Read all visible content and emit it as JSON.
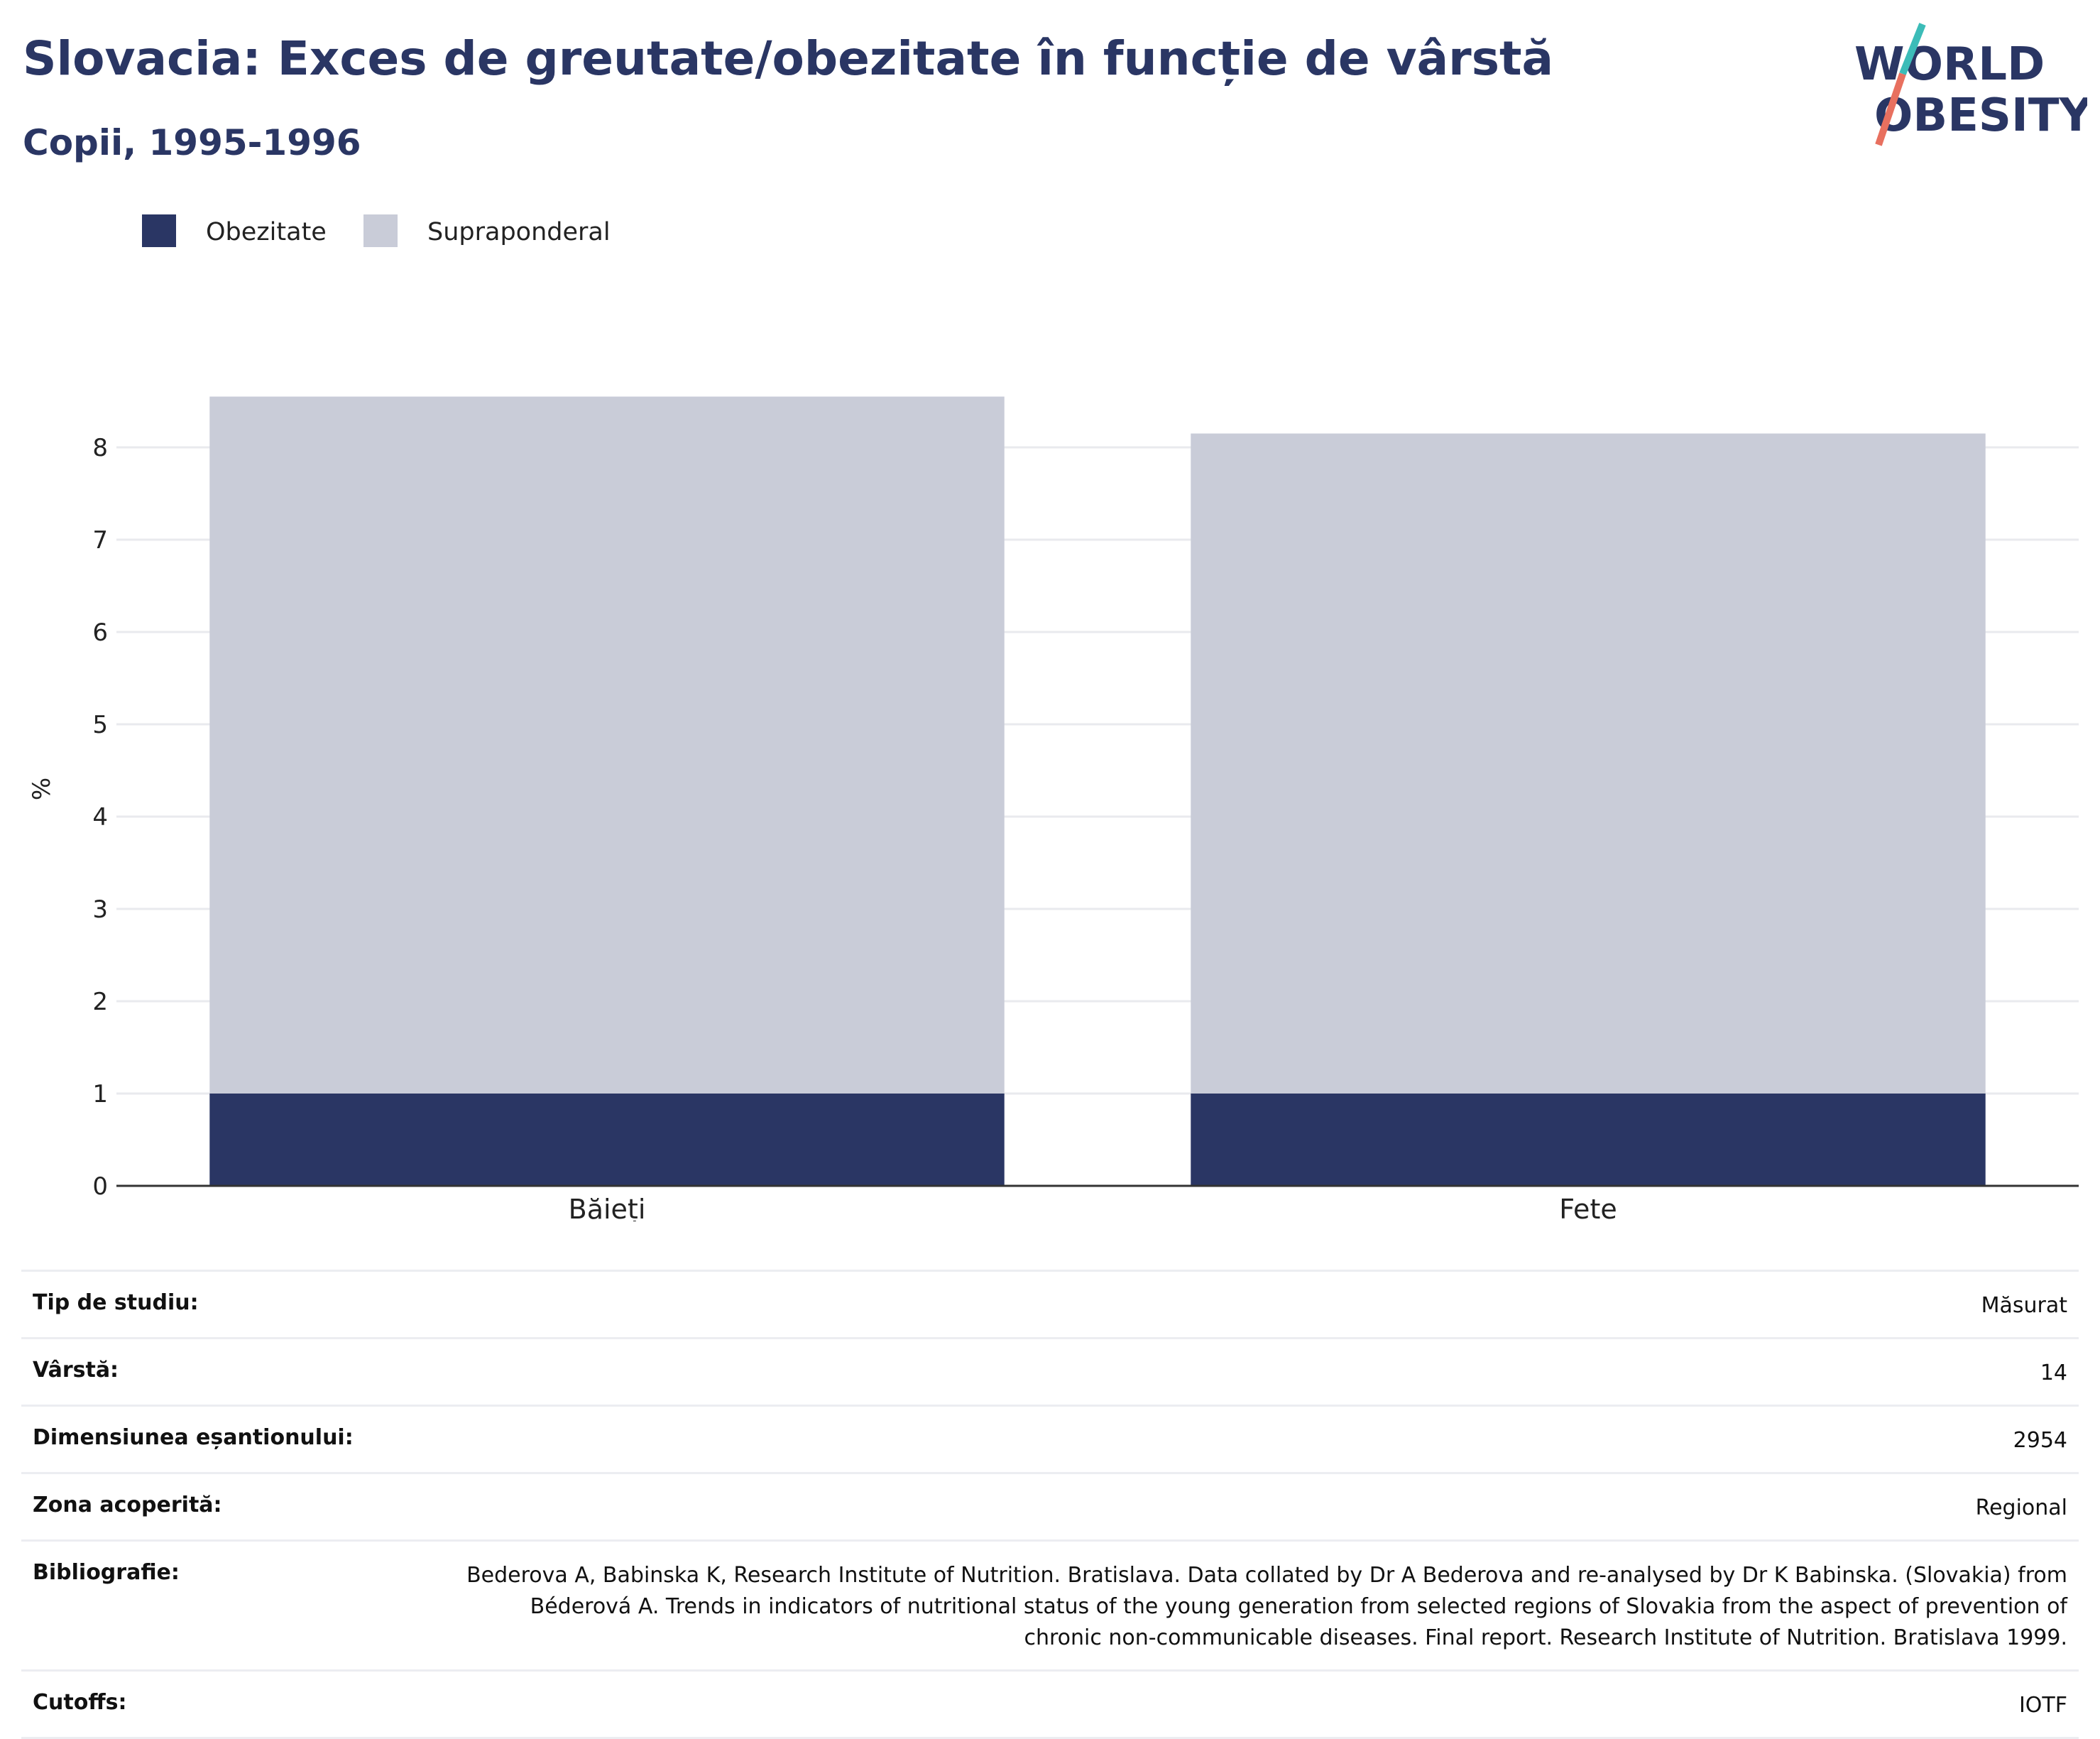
{
  "header": {
    "title": "Slovacia: Exces de greutate/obezitate în funcție de vârstă",
    "subtitle": "Copii, 1995-1996"
  },
  "logo": {
    "line1": "WORLD",
    "line2": "OBESITY"
  },
  "colors": {
    "obesity": "#2a3664",
    "overweight": "#c9ccd8",
    "text": "#2a3664",
    "logo_teal": "#3cbcb8",
    "logo_coral": "#e8705f"
  },
  "chart_data": {
    "type": "bar",
    "stacked": true,
    "categories": [
      "Băieți",
      "Fete"
    ],
    "series": [
      {
        "name": "Obezitate",
        "values": [
          1.0,
          1.0
        ]
      },
      {
        "name": "Supraponderal",
        "values": [
          7.55,
          7.15
        ]
      }
    ],
    "totals": [
      8.55,
      8.15
    ],
    "ylabel": "%",
    "ylim": [
      0,
      8.8
    ],
    "yticks": [
      0,
      1,
      2,
      3,
      4,
      5,
      6,
      7,
      8
    ],
    "grid": true,
    "legend_position": "top-left"
  },
  "info_table": [
    {
      "label": "Tip de studiu:",
      "value": "Măsurat"
    },
    {
      "label": "Vârstă:",
      "value": "14"
    },
    {
      "label": "Dimensiunea eșantionului:",
      "value": "2954"
    },
    {
      "label": "Zona acoperită:",
      "value": "Regional"
    },
    {
      "label": "Bibliografie:",
      "value": "Bederova A, Babinska K, Research Institute of Nutrition. Bratislava. Data collated by Dr A Bederova and re-analysed by Dr K Babinska. (Slovakia) from Béderová A. Trends in indicators of nutritional status of the young generation from selected regions of Slovakia from the aspect of prevention of chronic non-communicable diseases. Final report. Research Institute of Nutrition. Bratislava 1999."
    },
    {
      "label": "Cutoffs:",
      "value": "IOTF"
    }
  ]
}
